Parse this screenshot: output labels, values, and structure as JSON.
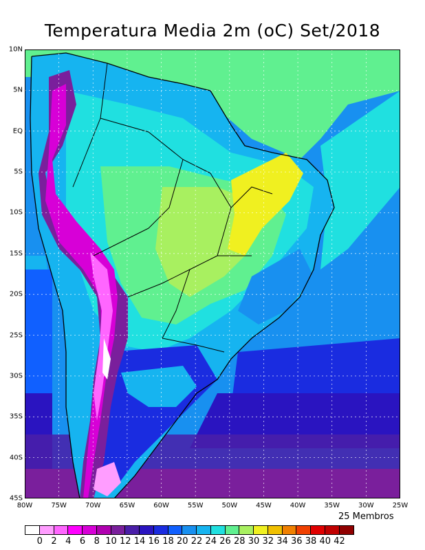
{
  "title": "Temperatura Media 2m (oC) Set/2018",
  "members_label": "25 Membros",
  "y_axis_labels": [
    "10N",
    "5N",
    "EQ",
    "5S",
    "10S",
    "15S",
    "20S",
    "25S",
    "30S",
    "35S",
    "40S",
    "45S"
  ],
  "x_axis_labels": [
    "80W",
    "75W",
    "70W",
    "65W",
    "60W",
    "55W",
    "50W",
    "45W",
    "40W",
    "35W",
    "30W",
    "25W"
  ],
  "colorbar": {
    "labels": [
      "0",
      "2",
      "4",
      "6",
      "8",
      "10",
      "12",
      "14",
      "16",
      "18",
      "20",
      "22",
      "24",
      "26",
      "28",
      "30",
      "32",
      "34",
      "36",
      "38",
      "40",
      "42"
    ],
    "colors": [
      "#ffffff",
      "#ff9dff",
      "#ff66ff",
      "#ff00ff",
      "#d700d7",
      "#b000b0",
      "#7a1f9c",
      "#4a1ea8",
      "#2a14c0",
      "#1a2ce0",
      "#1060ff",
      "#1890f0",
      "#16b4f0",
      "#20e0e0",
      "#60f090",
      "#a8f060",
      "#f0f020",
      "#f0c000",
      "#f08000",
      "#f04000",
      "#e00000",
      "#c00000",
      "#900000"
    ]
  },
  "chart_data": {
    "type": "heatmap",
    "title": "Temperatura Media 2m (oC) Set/2018",
    "xlabel": "",
    "ylabel": "",
    "lon_range": [
      "80W",
      "25W"
    ],
    "lat_range": [
      "10N",
      "45S"
    ],
    "levels": [
      0,
      2,
      4,
      6,
      8,
      10,
      12,
      14,
      16,
      18,
      20,
      22,
      24,
      26,
      28,
      30,
      32,
      34,
      36,
      38,
      40,
      42
    ],
    "grid": "dotted",
    "legend": "bottom"
  }
}
